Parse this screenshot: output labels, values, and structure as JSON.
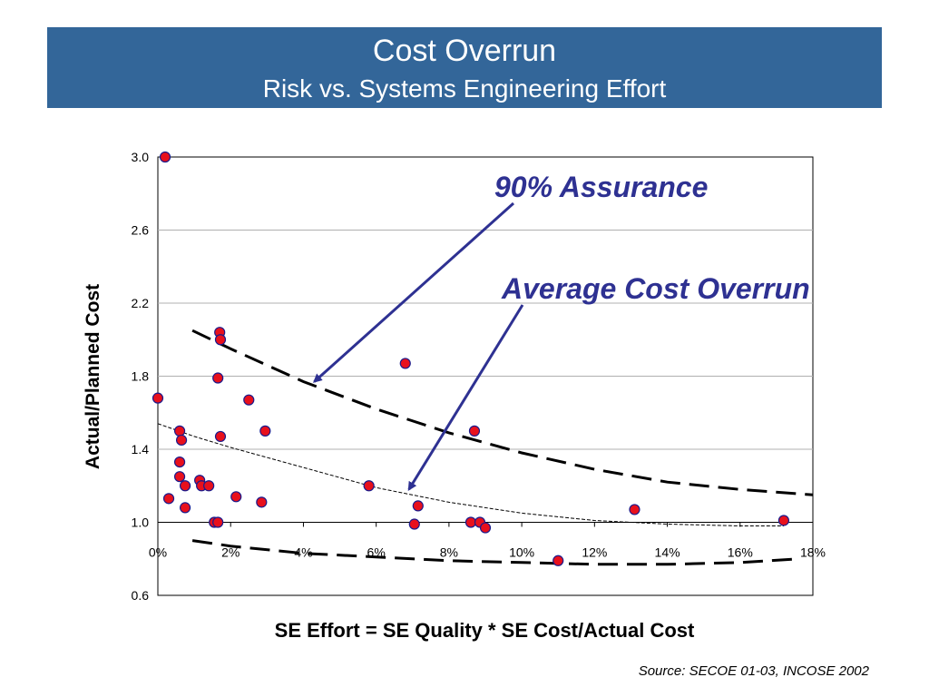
{
  "title": {
    "line1": "Cost Overrun",
    "line2": "Risk vs. Systems Engineering Effort"
  },
  "source": "Source: SECOE 01-03, INCOSE 2002",
  "colors": {
    "title_bg": "#336699",
    "annotation": "#2e3192",
    "point_fill": "#e8101c",
    "point_stroke": "#1a1a8c"
  },
  "chart_data": {
    "type": "scatter",
    "xlabel": "SE Effort = SE Quality * SE Cost/Actual Cost",
    "ylabel": "Actual/Planned Cost",
    "xlim": [
      0,
      18
    ],
    "ylim": [
      0.6,
      3.0
    ],
    "x_ticks": [
      "0%",
      "2%",
      "4%",
      "6%",
      "8%",
      "10%",
      "12%",
      "14%",
      "16%",
      "18%"
    ],
    "y_ticks": [
      "0.6",
      "1.0",
      "1.4",
      "1.8",
      "2.2",
      "2.6",
      "3.0"
    ],
    "grid": true,
    "points": [
      {
        "x": 0.2,
        "y": 3.0
      },
      {
        "x": 0.0,
        "y": 1.68
      },
      {
        "x": 0.3,
        "y": 1.13
      },
      {
        "x": 0.6,
        "y": 1.5
      },
      {
        "x": 0.65,
        "y": 1.45
      },
      {
        "x": 0.6,
        "y": 1.33
      },
      {
        "x": 0.6,
        "y": 1.25
      },
      {
        "x": 0.75,
        "y": 1.2
      },
      {
        "x": 0.75,
        "y": 1.08
      },
      {
        "x": 1.15,
        "y": 1.23
      },
      {
        "x": 1.2,
        "y": 1.2
      },
      {
        "x": 1.4,
        "y": 1.2
      },
      {
        "x": 1.55,
        "y": 1.0
      },
      {
        "x": 1.65,
        "y": 1.0
      },
      {
        "x": 1.65,
        "y": 1.79
      },
      {
        "x": 1.7,
        "y": 2.04
      },
      {
        "x": 1.72,
        "y": 2.0
      },
      {
        "x": 1.72,
        "y": 1.47
      },
      {
        "x": 2.15,
        "y": 1.14
      },
      {
        "x": 2.5,
        "y": 1.67
      },
      {
        "x": 2.85,
        "y": 1.11
      },
      {
        "x": 2.95,
        "y": 1.5
      },
      {
        "x": 5.8,
        "y": 1.2
      },
      {
        "x": 6.8,
        "y": 1.87
      },
      {
        "x": 7.05,
        "y": 0.99
      },
      {
        "x": 7.15,
        "y": 1.09
      },
      {
        "x": 8.6,
        "y": 1.0
      },
      {
        "x": 8.7,
        "y": 1.5
      },
      {
        "x": 8.85,
        "y": 1.0
      },
      {
        "x": 9.0,
        "y": 0.97
      },
      {
        "x": 11.0,
        "y": 0.79
      },
      {
        "x": 13.1,
        "y": 1.07
      },
      {
        "x": 17.2,
        "y": 1.01
      }
    ],
    "curves": [
      {
        "name": "90% Assurance",
        "style": "long-dash",
        "points": [
          [
            0.95,
            2.05
          ],
          [
            2,
            1.95
          ],
          [
            4,
            1.77
          ],
          [
            6,
            1.62
          ],
          [
            8,
            1.49
          ],
          [
            10,
            1.38
          ],
          [
            12,
            1.29
          ],
          [
            14,
            1.22
          ],
          [
            16,
            1.18
          ],
          [
            18,
            1.15
          ]
        ]
      },
      {
        "name": "Average Cost Overrun",
        "style": "short-dash",
        "points": [
          [
            0,
            1.54
          ],
          [
            1,
            1.47
          ],
          [
            2,
            1.41
          ],
          [
            4,
            1.3
          ],
          [
            6,
            1.19
          ],
          [
            8,
            1.11
          ],
          [
            10,
            1.05
          ],
          [
            12,
            1.01
          ],
          [
            14,
            0.99
          ],
          [
            16,
            0.98
          ],
          [
            17.2,
            0.98
          ]
        ]
      },
      {
        "name": "lower bound",
        "style": "long-dash",
        "points": [
          [
            0.95,
            0.9
          ],
          [
            2,
            0.87
          ],
          [
            4,
            0.83
          ],
          [
            6,
            0.81
          ],
          [
            8,
            0.79
          ],
          [
            10,
            0.78
          ],
          [
            12,
            0.77
          ],
          [
            14,
            0.77
          ],
          [
            16,
            0.78
          ],
          [
            17.6,
            0.8
          ]
        ]
      }
    ],
    "annotations": [
      {
        "text": "90% Assurance",
        "arrow_to": [
          4.3,
          1.77
        ]
      },
      {
        "text": "Average Cost Overrun",
        "arrow_to": [
          6.9,
          1.18
        ]
      }
    ]
  }
}
